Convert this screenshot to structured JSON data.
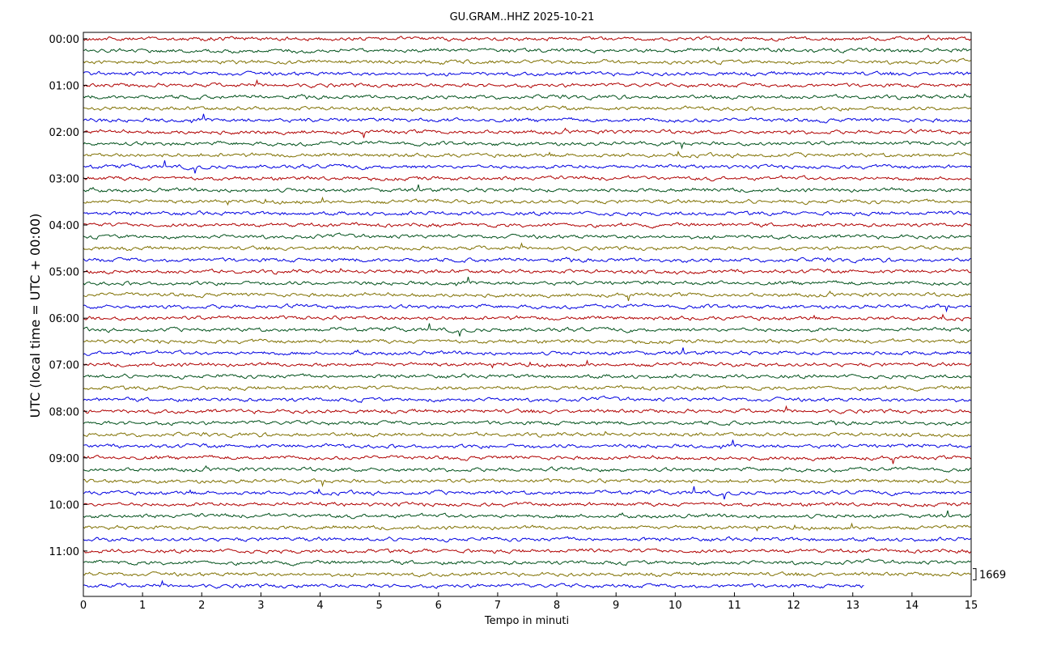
{
  "chart_data": {
    "type": "helicorder",
    "title": "GU.GRAM..HHZ 2025-10-21",
    "xlabel": "Tempo in minuti",
    "ylabel": "UTC (local time = UTC + 00:00)",
    "xlim": [
      0,
      15
    ],
    "xticks": [
      0,
      1,
      2,
      3,
      4,
      5,
      6,
      7,
      8,
      9,
      10,
      11,
      12,
      13,
      14,
      15
    ],
    "ylim": [
      -0.55,
      47.9
    ],
    "y_inverted": true,
    "yticks": [
      {
        "value": 0,
        "label": "00:00"
      },
      {
        "value": 4,
        "label": "01:00"
      },
      {
        "value": 8,
        "label": "02:00"
      },
      {
        "value": 12,
        "label": "03:00"
      },
      {
        "value": 16,
        "label": "04:00"
      },
      {
        "value": 20,
        "label": "05:00"
      },
      {
        "value": 24,
        "label": "06:00"
      },
      {
        "value": 28,
        "label": "07:00"
      },
      {
        "value": 32,
        "label": "08:00"
      },
      {
        "value": 36,
        "label": "09:00"
      },
      {
        "value": 40,
        "label": "10:00"
      },
      {
        "value": 44,
        "label": "11:00"
      }
    ],
    "trace_colors": [
      "#b00000",
      "#00501a",
      "#7f7000",
      "#0000e0"
    ],
    "trace_ends": [
      15,
      15,
      15,
      15,
      15,
      15,
      15,
      15,
      15,
      15,
      15,
      15,
      15,
      15,
      15,
      15,
      15,
      15,
      15,
      15,
      15,
      15,
      15,
      15,
      15,
      15,
      15,
      15,
      15,
      15,
      15,
      15,
      15,
      15,
      15,
      15,
      15,
      15,
      15,
      15,
      15,
      15,
      15,
      15,
      15,
      15,
      15,
      13.2
    ],
    "scale_label": "1669"
  }
}
